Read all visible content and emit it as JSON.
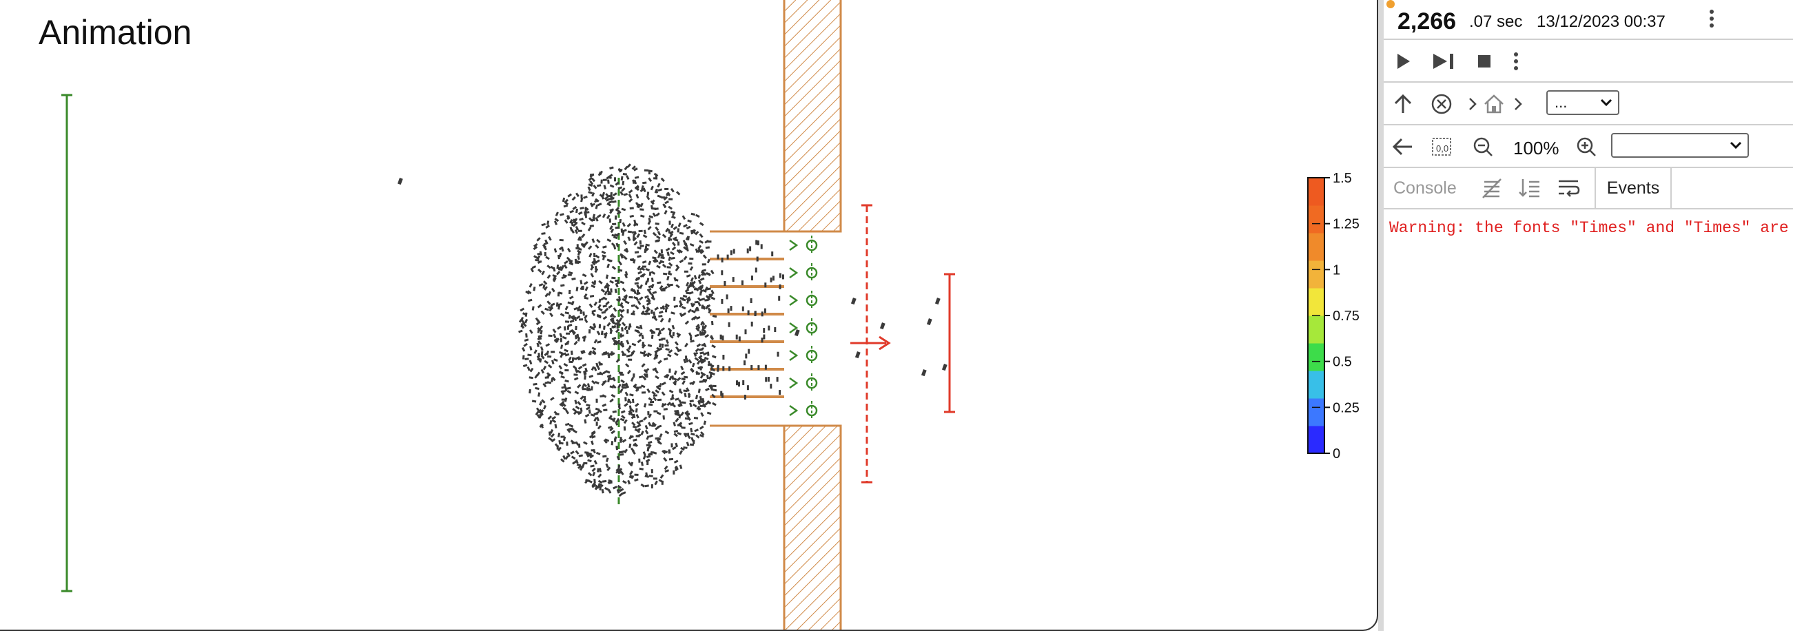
{
  "canvas": {
    "title": "Animation",
    "legend_ticks": [
      "1.5",
      "1.25",
      "1",
      "0.75",
      "0.5",
      "0.25",
      "0"
    ],
    "legend_colors": [
      "#2a2aff",
      "#3c78ff",
      "#38bfe8",
      "#3ddc4a",
      "#a6e83a",
      "#f2e63a",
      "#f2b33a",
      "#f08a2a",
      "#f06a22",
      "#ee5a20"
    ],
    "colors": {
      "wall": "#d08a48",
      "start_line": "#3a8a2a",
      "exit_line": "#e03a2a",
      "agent": "#3a3a3a"
    }
  },
  "panel": {
    "time_big": "2,266",
    "time_small": ".07 sec",
    "datetime": "13/12/2023 00:37",
    "breadcrumb_select": "...",
    "zoom": "100%",
    "zoom_select": "",
    "tabs": {
      "console": "Console",
      "events": "Events"
    },
    "warning": "Warning: the fonts \"Times\" and \"Times\" are no"
  },
  "icons": {
    "menu": "kebab-vertical-icon",
    "play": "play-icon",
    "step": "step-forward-icon",
    "stop": "stop-icon",
    "up": "arrow-up-icon",
    "close": "close-circle-icon",
    "home": "home-icon",
    "back": "arrow-left-icon",
    "zoom-fit": "zoom-fit-icon",
    "zoom-out": "zoom-out-icon",
    "zoom-in": "zoom-in-icon",
    "no-breakpoint": "clear-filter-icon",
    "sort": "sort-icon",
    "wrap": "wrap-icon"
  }
}
